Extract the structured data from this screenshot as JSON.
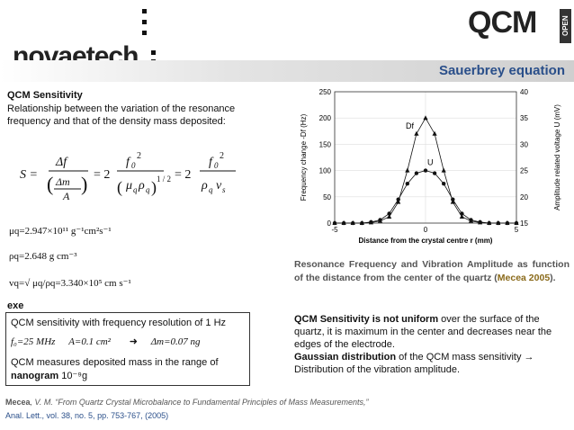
{
  "header": {
    "brand_left": "novaetech",
    "brand_right": "QCM",
    "brand_badge": "OPEN",
    "slide_title": "Sauerbrey equation"
  },
  "left": {
    "section_title": "QCM Sensitivity",
    "intro": "Relationship between the variation of the resonance frequency and that of the density mass deposited:",
    "constants": {
      "mu": "μq=2.947×10¹¹ g⁻¹cm²s⁻¹",
      "rho": "ρq=2.648 g cm⁻³",
      "v": "vq=√ μq/ρq=3.340×10⁵ cm s⁻¹"
    },
    "exe_label": "exe",
    "box": {
      "line1": "QCM sensitivity with frequency resolution of 1 Hz",
      "f0": "f₀=25 MHz",
      "a": "A=0.1 cm²",
      "arrow": "➜",
      "dm": "Δm=0.07 ng",
      "line3": "QCM measures deposited mass in the range of",
      "nanogram": "nanogram",
      "range": "10⁻⁹g"
    }
  },
  "chart_data": {
    "type": "line",
    "xlabel": "Distance from the crystal centre r (mm)",
    "ylabel": "Frequency change -Df (Hz)",
    "ylabel_right": "Amplitude related voltage U (mV)",
    "xlim": [
      -5,
      5
    ],
    "ylim": [
      0,
      250
    ],
    "ylim_right": [
      15,
      40
    ],
    "x_ticks": [
      "-5",
      "0",
      "5"
    ],
    "y_ticks": [
      "0",
      "50",
      "100",
      "150",
      "200",
      "250"
    ],
    "y_ticks_right": [
      "15",
      "20",
      "25",
      "30",
      "35",
      "40"
    ],
    "series": [
      {
        "name": "Df",
        "marker": "triangle",
        "x": [
          -5,
          -4.5,
          -4,
          -3.5,
          -3,
          -2.5,
          -2,
          -1.5,
          -1,
          -0.5,
          0,
          0.5,
          1,
          1.5,
          2,
          2.5,
          3,
          3.5,
          4,
          4.5,
          5
        ],
        "values": [
          0,
          0,
          0,
          0,
          1,
          4,
          12,
          40,
          100,
          170,
          200,
          170,
          100,
          40,
          12,
          4,
          1,
          0,
          0,
          0,
          0
        ]
      },
      {
        "name": "U",
        "marker": "circle",
        "x": [
          -5,
          -4.5,
          -4,
          -3.5,
          -3,
          -2.5,
          -2,
          -1.5,
          -1,
          -0.5,
          0,
          0.5,
          1,
          1.5,
          2,
          2.5,
          3,
          3.5,
          4,
          4.5,
          5
        ],
        "values": [
          0,
          0,
          0,
          0,
          2,
          6,
          18,
          45,
          75,
          95,
          100,
          95,
          75,
          45,
          18,
          6,
          2,
          0,
          0,
          0,
          0
        ]
      }
    ]
  },
  "right": {
    "caption_pre": "Resonance Frequency and Vibration Amplitude as function of the distance from the center of the quartz (",
    "caption_ref": "Mecea 2005",
    "caption_post": ").",
    "note_bold1": "QCM Sensitivity is not uniform",
    "note1": " over the surface of the quartz, it is maximum in the center and decreases near the edges of the electrode.",
    "note_bold2": "Gaussian distribution",
    "note2": " of the QCM mass sensitivity → Distribution of the vibration amplitude."
  },
  "footer": {
    "ref_author": "Mecea",
    "ref_text": ", V. M. “From Quartz Crystal Microbalance to Fundamental Principles of Mass Measurements,”",
    "ref_journal": "Anal. Lett., vol. 38, no. 5, pp. 753-767, (2005)"
  },
  "colors": {
    "title_blue": "#2a4f8a",
    "brand_green": "#5aa02c"
  }
}
